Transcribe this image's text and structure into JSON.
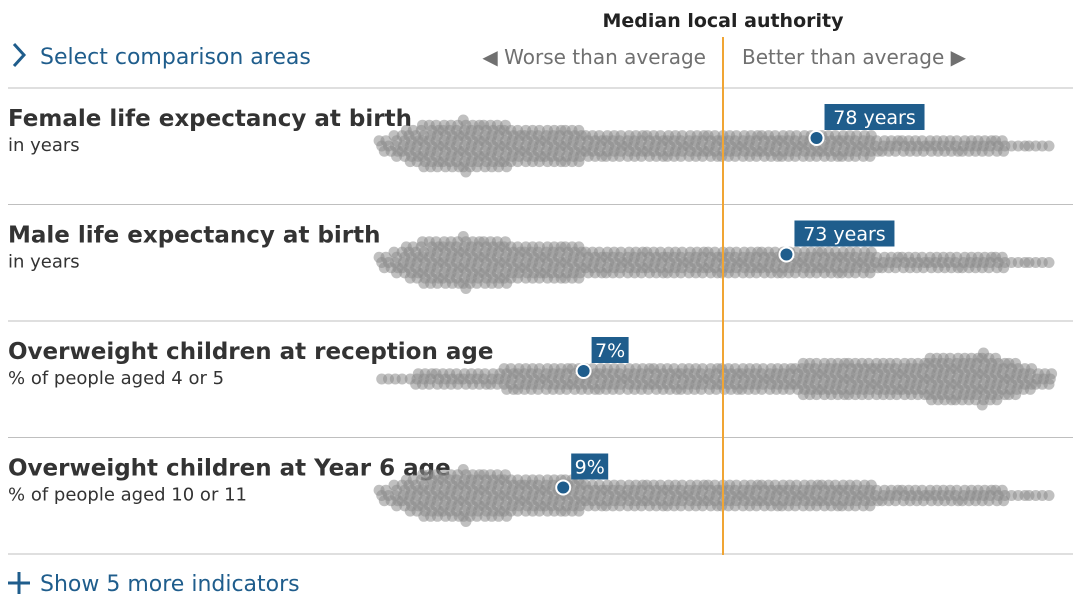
{
  "header": {
    "select_label": "Select comparison areas",
    "median_label": "Median local authority",
    "worse_label": "◀ Worse than average",
    "better_label": "Better than average ▶"
  },
  "footer": {
    "more_label": "Show 5 more indicators"
  },
  "colors": {
    "accent": "#1f5d8c",
    "median_line": "#f0a534",
    "dot_fill": "#8c8c8c",
    "divider": "#bfbfbf"
  },
  "icons": {
    "select": "chevron-right-icon",
    "more": "plus-icon"
  },
  "chart_data": {
    "type": "scatter",
    "subtype": "beeswarm",
    "x_axis": "relative position vs median local authority (0 = median, -1 = worst, +1 = best)",
    "xlim": [
      -1,
      1
    ],
    "median_x": 0,
    "rows": [
      {
        "title": "Female life expectancy at birth",
        "subtitle": "in years",
        "highlight": {
          "label": "78 years",
          "x": 0.28
        },
        "distribution": [
          {
            "x": -1.0,
            "w": 0.2
          },
          {
            "x": -0.94,
            "w": 0.5
          },
          {
            "x": -0.88,
            "w": 0.8
          },
          {
            "x": -0.82,
            "w": 0.9
          },
          {
            "x": -0.76,
            "w": 1.0
          },
          {
            "x": -0.7,
            "w": 0.9
          },
          {
            "x": -0.64,
            "w": 0.8
          },
          {
            "x": -0.58,
            "w": 0.7
          },
          {
            "x": -0.52,
            "w": 0.65
          },
          {
            "x": -0.46,
            "w": 0.6
          },
          {
            "x": -0.4,
            "w": 0.55
          },
          {
            "x": -0.34,
            "w": 0.5
          },
          {
            "x": -0.28,
            "w": 0.45
          },
          {
            "x": -0.22,
            "w": 0.4
          },
          {
            "x": -0.16,
            "w": 0.4
          },
          {
            "x": -0.1,
            "w": 0.45
          },
          {
            "x": -0.04,
            "w": 0.5
          },
          {
            "x": 0.0,
            "w": 0.55
          },
          {
            "x": 0.06,
            "w": 0.4
          },
          {
            "x": 0.12,
            "w": 0.35
          },
          {
            "x": 0.18,
            "w": 0.35
          },
          {
            "x": 0.24,
            "w": 0.4
          },
          {
            "x": 0.3,
            "w": 0.35
          },
          {
            "x": 0.36,
            "w": 0.4
          },
          {
            "x": 0.42,
            "w": 0.35
          },
          {
            "x": 0.48,
            "w": 0.3
          },
          {
            "x": 0.54,
            "w": 0.3
          },
          {
            "x": 0.62,
            "w": 0.25
          },
          {
            "x": 0.72,
            "w": 0.2
          },
          {
            "x": 0.82,
            "w": 0.12
          },
          {
            "x": 0.92,
            "w": 0.08
          },
          {
            "x": 1.0,
            "w": 0.05
          }
        ]
      },
      {
        "title": "Male life expectancy at birth",
        "subtitle": "in years",
        "highlight": {
          "label": "73 years",
          "x": 0.19
        },
        "distribution": [
          {
            "x": -1.0,
            "w": 0.2
          },
          {
            "x": -0.94,
            "w": 0.5
          },
          {
            "x": -0.88,
            "w": 0.8
          },
          {
            "x": -0.82,
            "w": 0.9
          },
          {
            "x": -0.76,
            "w": 1.0
          },
          {
            "x": -0.7,
            "w": 0.9
          },
          {
            "x": -0.64,
            "w": 0.8
          },
          {
            "x": -0.58,
            "w": 0.7
          },
          {
            "x": -0.52,
            "w": 0.65
          },
          {
            "x": -0.46,
            "w": 0.6
          },
          {
            "x": -0.4,
            "w": 0.55
          },
          {
            "x": -0.34,
            "w": 0.5
          },
          {
            "x": -0.28,
            "w": 0.45
          },
          {
            "x": -0.22,
            "w": 0.4
          },
          {
            "x": -0.16,
            "w": 0.4
          },
          {
            "x": -0.1,
            "w": 0.45
          },
          {
            "x": -0.04,
            "w": 0.5
          },
          {
            "x": 0.0,
            "w": 0.55
          },
          {
            "x": 0.06,
            "w": 0.4
          },
          {
            "x": 0.12,
            "w": 0.35
          },
          {
            "x": 0.18,
            "w": 0.35
          },
          {
            "x": 0.24,
            "w": 0.4
          },
          {
            "x": 0.3,
            "w": 0.35
          },
          {
            "x": 0.36,
            "w": 0.4
          },
          {
            "x": 0.42,
            "w": 0.35
          },
          {
            "x": 0.48,
            "w": 0.3
          },
          {
            "x": 0.54,
            "w": 0.3
          },
          {
            "x": 0.62,
            "w": 0.25
          },
          {
            "x": 0.72,
            "w": 0.2
          },
          {
            "x": 0.82,
            "w": 0.12
          },
          {
            "x": 0.92,
            "w": 0.08
          },
          {
            "x": 1.0,
            "w": 0.05
          }
        ]
      },
      {
        "title": "Overweight children at reception age",
        "subtitle": "% of people aged 4 or 5",
        "highlight": {
          "label": "7%",
          "x": -0.41
        },
        "distribution": [
          {
            "x": -1.0,
            "w": 0.05
          },
          {
            "x": -0.92,
            "w": 0.1
          },
          {
            "x": -0.84,
            "w": 0.15
          },
          {
            "x": -0.76,
            "w": 0.2
          },
          {
            "x": -0.68,
            "w": 0.3
          },
          {
            "x": -0.6,
            "w": 0.4
          },
          {
            "x": -0.52,
            "w": 0.45
          },
          {
            "x": -0.44,
            "w": 0.45
          },
          {
            "x": -0.36,
            "w": 0.4
          },
          {
            "x": -0.28,
            "w": 0.4
          },
          {
            "x": -0.2,
            "w": 0.35
          },
          {
            "x": -0.12,
            "w": 0.4
          },
          {
            "x": -0.04,
            "w": 0.55
          },
          {
            "x": 0.0,
            "w": 0.45
          },
          {
            "x": 0.06,
            "w": 0.45
          },
          {
            "x": 0.14,
            "w": 0.5
          },
          {
            "x": 0.22,
            "w": 0.55
          },
          {
            "x": 0.3,
            "w": 0.6
          },
          {
            "x": 0.38,
            "w": 0.7
          },
          {
            "x": 0.46,
            "w": 0.6
          },
          {
            "x": 0.54,
            "w": 0.65
          },
          {
            "x": 0.62,
            "w": 0.8
          },
          {
            "x": 0.7,
            "w": 0.95
          },
          {
            "x": 0.78,
            "w": 1.0
          },
          {
            "x": 0.86,
            "w": 0.7
          },
          {
            "x": 0.94,
            "w": 0.3
          },
          {
            "x": 1.0,
            "w": 0.1
          }
        ]
      },
      {
        "title": "Overweight children at Year 6 age",
        "subtitle": "% of people aged 10 or 11",
        "highlight": {
          "label": "9%",
          "x": -0.47
        },
        "distribution": [
          {
            "x": -1.0,
            "w": 0.2
          },
          {
            "x": -0.94,
            "w": 0.5
          },
          {
            "x": -0.88,
            "w": 0.8
          },
          {
            "x": -0.82,
            "w": 0.9
          },
          {
            "x": -0.76,
            "w": 1.0
          },
          {
            "x": -0.7,
            "w": 0.9
          },
          {
            "x": -0.64,
            "w": 0.8
          },
          {
            "x": -0.58,
            "w": 0.7
          },
          {
            "x": -0.52,
            "w": 0.65
          },
          {
            "x": -0.46,
            "w": 0.6
          },
          {
            "x": -0.4,
            "w": 0.55
          },
          {
            "x": -0.34,
            "w": 0.5
          },
          {
            "x": -0.28,
            "w": 0.45
          },
          {
            "x": -0.22,
            "w": 0.4
          },
          {
            "x": -0.16,
            "w": 0.4
          },
          {
            "x": -0.1,
            "w": 0.45
          },
          {
            "x": -0.04,
            "w": 0.5
          },
          {
            "x": 0.0,
            "w": 0.55
          },
          {
            "x": 0.06,
            "w": 0.4
          },
          {
            "x": 0.12,
            "w": 0.35
          },
          {
            "x": 0.18,
            "w": 0.35
          },
          {
            "x": 0.24,
            "w": 0.4
          },
          {
            "x": 0.3,
            "w": 0.35
          },
          {
            "x": 0.36,
            "w": 0.4
          },
          {
            "x": 0.42,
            "w": 0.35
          },
          {
            "x": 0.48,
            "w": 0.3
          },
          {
            "x": 0.54,
            "w": 0.3
          },
          {
            "x": 0.62,
            "w": 0.25
          },
          {
            "x": 0.72,
            "w": 0.2
          },
          {
            "x": 0.82,
            "w": 0.12
          },
          {
            "x": 0.92,
            "w": 0.08
          },
          {
            "x": 1.0,
            "w": 0.05
          }
        ]
      }
    ]
  }
}
